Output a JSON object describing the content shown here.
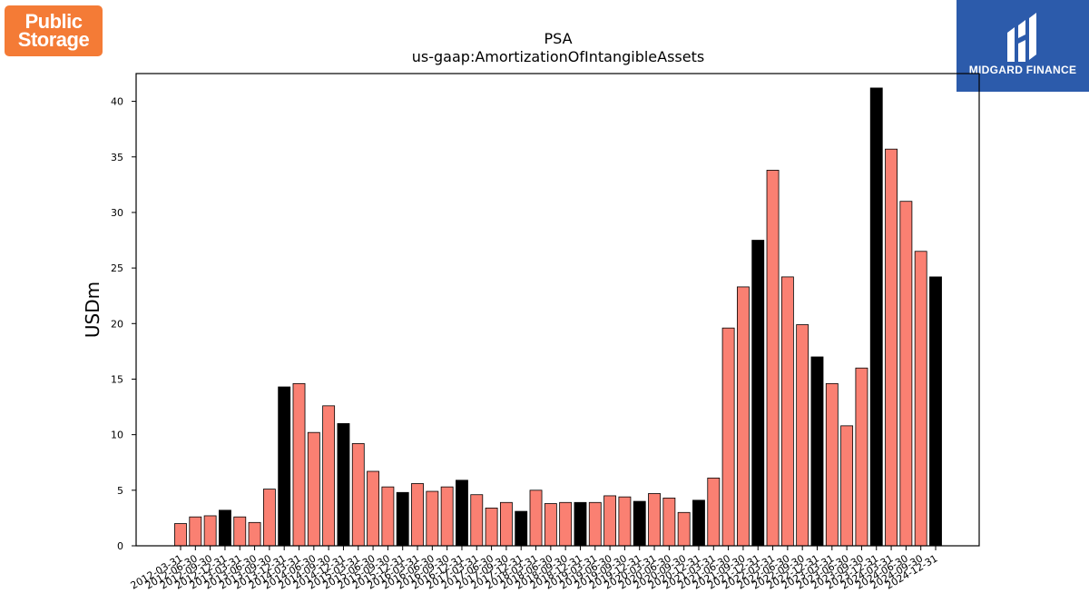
{
  "logos": {
    "left_text_line1": "Public",
    "left_text_line2": "Storage",
    "right_text": "MIDGARD FINANCE"
  },
  "chart_data": {
    "type": "bar",
    "title": "PSA",
    "subtitle": "us-gaap:AmortizationOfIntangibleAssets",
    "ylabel": "USDm",
    "xlabel": "",
    "ylim": [
      0,
      42.5
    ],
    "yticks": [
      0,
      5,
      10,
      15,
      20,
      25,
      30,
      35,
      40
    ],
    "grid": false,
    "colors": {
      "quarter": "#fa8072",
      "year_end": "#000000",
      "edge": "#000000"
    },
    "categories": [
      "2012-03-31",
      "2012-06-30",
      "2012-09-30",
      "2012-12-31",
      "2013-03-31",
      "2013-06-30",
      "2013-09-30",
      "2013-12-31",
      "2014-03-31",
      "2014-06-30",
      "2014-09-30",
      "2014-12-31",
      "2015-03-31",
      "2015-06-30",
      "2015-09-30",
      "2015-12-31",
      "2016-03-31",
      "2016-06-30",
      "2016-09-30",
      "2016-12-31",
      "2017-03-31",
      "2017-06-30",
      "2017-09-30",
      "2017-12-31",
      "2018-03-31",
      "2018-06-30",
      "2018-09-30",
      "2018-12-31",
      "2019-03-31",
      "2019-06-30",
      "2019-09-30",
      "2019-12-31",
      "2020-03-31",
      "2020-06-30",
      "2020-09-30",
      "2020-12-31",
      "2021-03-31",
      "2021-06-30",
      "2021-09-30",
      "2021-12-31",
      "2022-03-31",
      "2022-06-30",
      "2022-09-30",
      "2022-12-31",
      "2023-03-31",
      "2023-06-30",
      "2023-09-30",
      "2023-12-31",
      "2024-03-31",
      "2024-06-30",
      "2024-09-30",
      "2024-12-31"
    ],
    "values": [
      2.0,
      2.6,
      2.7,
      3.2,
      2.6,
      2.1,
      5.1,
      14.3,
      14.6,
      10.2,
      12.6,
      11.0,
      9.2,
      6.7,
      5.3,
      4.8,
      5.6,
      4.9,
      5.3,
      5.9,
      4.6,
      3.4,
      3.9,
      3.1,
      5.0,
      3.8,
      3.9,
      3.9,
      3.9,
      4.5,
      4.4,
      4.0,
      4.7,
      4.3,
      3.0,
      4.1,
      6.1,
      19.6,
      23.3,
      27.5,
      33.8,
      24.2,
      19.9,
      17.0,
      14.6,
      10.8,
      16.0,
      41.2,
      35.7,
      31.0,
      26.5,
      24.2
    ],
    "highlight_indices": [
      3,
      7,
      11,
      15,
      19,
      23,
      27,
      31,
      35,
      39,
      43,
      47,
      51
    ]
  }
}
